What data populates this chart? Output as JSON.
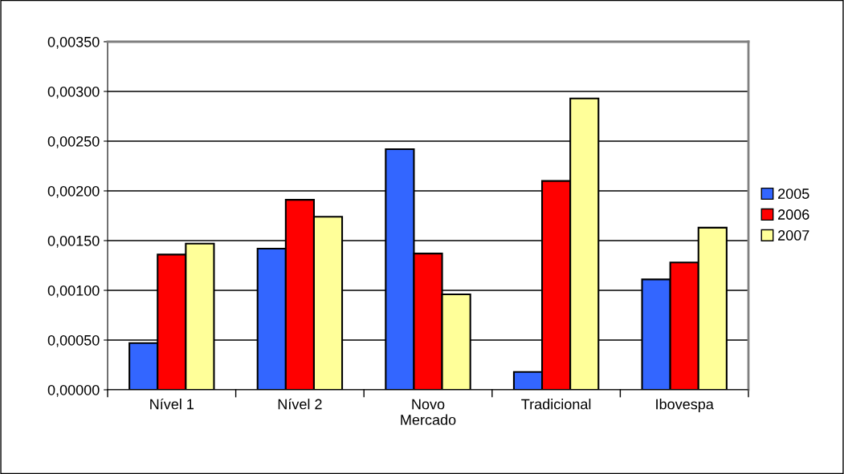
{
  "chart_data": {
    "type": "bar",
    "categories": [
      "Nível 1",
      "Nível 2",
      "Novo Mercado",
      "Tradicional",
      "Ibovespa"
    ],
    "series": [
      {
        "name": "2005",
        "color": "#3366ff",
        "values": [
          0.00047,
          0.00142,
          0.00242,
          0.00018,
          0.00111
        ]
      },
      {
        "name": "2006",
        "color": "#ff0000",
        "values": [
          0.00136,
          0.00191,
          0.00137,
          0.0021,
          0.00128
        ]
      },
      {
        "name": "2007",
        "color": "#ffff99",
        "values": [
          0.00147,
          0.00174,
          0.00096,
          0.00293,
          0.00163
        ]
      }
    ],
    "ylim": [
      0,
      0.0035
    ],
    "yticks": [
      {
        "value": 0,
        "label": "0,00000"
      },
      {
        "value": 0.0005,
        "label": "0,00050"
      },
      {
        "value": 0.001,
        "label": "0,00100"
      },
      {
        "value": 0.0015,
        "label": "0,00150"
      },
      {
        "value": 0.002,
        "label": "0,00200"
      },
      {
        "value": 0.0025,
        "label": "0,00250"
      },
      {
        "value": 0.003,
        "label": "0,00300"
      },
      {
        "value": 0.0035,
        "label": "0,00350"
      }
    ],
    "grid": "y",
    "legend": "right"
  }
}
